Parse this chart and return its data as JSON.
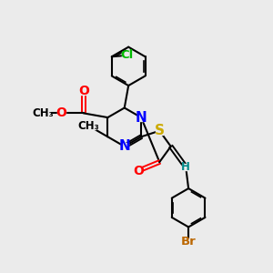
{
  "bg_color": "#ebebeb",
  "bond_color": "#000000",
  "atom_colors": {
    "N": "#0000ff",
    "S": "#ccaa00",
    "O": "#ff0000",
    "Cl": "#00bb00",
    "Br": "#bb6600",
    "H": "#008888",
    "C": "#000000"
  },
  "font_size": 9
}
